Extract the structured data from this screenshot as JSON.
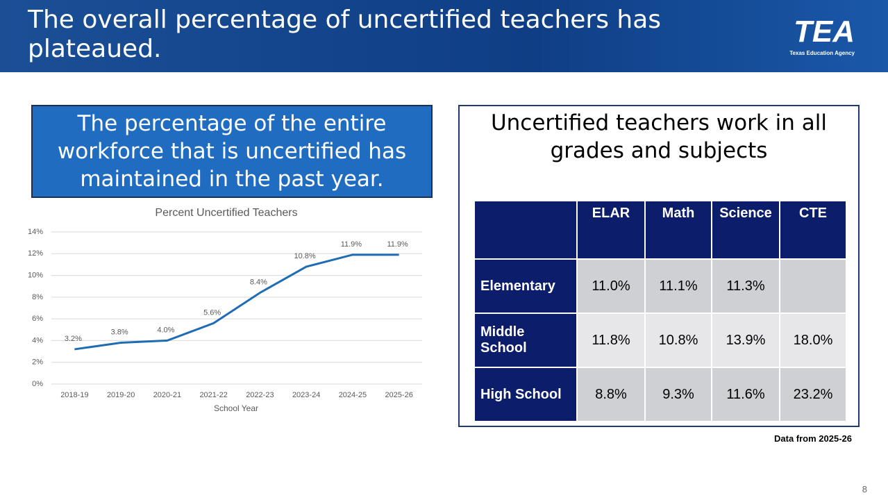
{
  "header": {
    "title": "The overall percentage of uncertified teachers has plateaued.",
    "logo": "TEA",
    "logo_subtitle": "Texas Education Agency"
  },
  "callout": "The percentage of the entire workforce that is uncertified has maintained in the past year.",
  "chart_data": {
    "type": "line",
    "title": "Percent Uncertified Teachers",
    "x_label": "School Year",
    "categories": [
      "2018-19",
      "2019-20",
      "2020-21",
      "2021-22",
      "2022-23",
      "2023-24",
      "2024-25",
      "2025-26"
    ],
    "series": [
      {
        "name": "Percent Uncertified Teachers",
        "color": "#1f6cb4",
        "values": [
          3.2,
          3.8,
          4.0,
          5.6,
          8.4,
          10.8,
          11.9,
          11.9
        ],
        "value_labels": [
          "3.2%",
          "3.8%",
          "4.0%",
          "5.6%",
          "8.4%",
          "10.8%",
          "11.9%",
          "11.9%"
        ]
      }
    ],
    "ylim": [
      0,
      14
    ],
    "yticks": [
      {
        "value": 0,
        "label": "0%"
      },
      {
        "value": 2,
        "label": "2%"
      },
      {
        "value": 4,
        "label": "4%"
      },
      {
        "value": 6,
        "label": "6%"
      },
      {
        "value": 8,
        "label": "8%"
      },
      {
        "value": 10,
        "label": "10%"
      },
      {
        "value": 12,
        "label": "12%"
      },
      {
        "value": 14,
        "label": "14%"
      }
    ],
    "grid": true
  },
  "panel": {
    "title": "Uncertified teachers work in all grades and subjects",
    "table": {
      "columns": [
        "ELAR",
        "Math",
        "Science",
        "CTE"
      ],
      "rows": [
        {
          "label": "Elementary",
          "cells": [
            "11.0%",
            "11.1%",
            "11.3%",
            null
          ]
        },
        {
          "label": "Middle School",
          "cells": [
            "11.8%",
            "10.8%",
            "13.9%",
            "18.0%"
          ]
        },
        {
          "label": "High School",
          "cells": [
            "8.8%",
            "9.3%",
            "11.6%",
            "23.2%"
          ]
        }
      ]
    },
    "footnote": "Data from 2025-26"
  },
  "page_number": "8"
}
